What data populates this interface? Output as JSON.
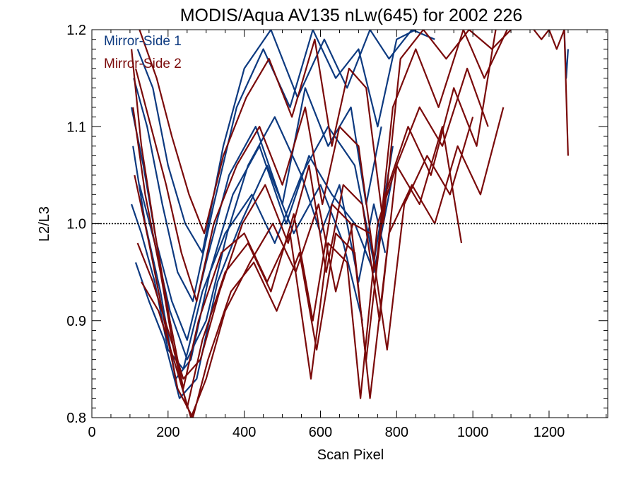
{
  "chart_data": {
    "type": "line",
    "title": "MODIS/Aqua AV135 nLw(645) for 2002 226",
    "xlabel": "Scan Pixel",
    "ylabel": "L2/L3",
    "xlim": [
      0,
      1354
    ],
    "ylim": [
      0.8,
      1.2
    ],
    "x_ticks": [
      "0",
      "200",
      "400",
      "600",
      "800",
      "1000",
      "1200"
    ],
    "y_ticks": [
      "0.8",
      "0.9",
      "1.0",
      "1.1",
      "1.2"
    ],
    "reference_line": 1.0,
    "legend": {
      "position": "top-left",
      "entries": [
        {
          "name": "Mirror-Side 1",
          "color": "#0d3a80"
        },
        {
          "name": "Mirror-Side 2",
          "color": "#7a0a0a"
        }
      ]
    },
    "series": [
      {
        "group": "Mirror-Side 1",
        "color": "#0d3a80",
        "x": [
          104,
          130,
          165,
          200,
          240,
          290,
          350,
          420,
          480,
          550,
          600,
          650,
          700,
          740,
          770
        ],
        "y": [
          1.02,
          0.99,
          0.94,
          0.87,
          0.85,
          0.93,
          0.99,
          1.03,
          0.98,
          1.05,
          0.99,
          1.04,
          0.94,
          1.02,
          0.97
        ]
      },
      {
        "group": "Mirror-Side 1",
        "color": "#0d3a80",
        "x": [
          104,
          135,
          170,
          210,
          250,
          300,
          360,
          430,
          500,
          560,
          620,
          680,
          720,
          760
        ],
        "y": [
          1.12,
          1.06,
          0.98,
          0.92,
          0.88,
          0.96,
          1.05,
          1.1,
          1.02,
          1.14,
          1.08,
          1.12,
          1.02,
          1.1
        ]
      },
      {
        "group": "Mirror-Side 1",
        "color": "#0d3a80",
        "x": [
          108,
          140,
          180,
          220,
          260,
          310,
          370,
          440,
          510,
          570,
          630,
          690,
          740,
          790
        ],
        "y": [
          1.08,
          1.0,
          0.93,
          0.84,
          0.86,
          0.95,
          1.03,
          1.08,
          1.0,
          1.07,
          1.03,
          1.0,
          0.95,
          1.05
        ]
      },
      {
        "group": "Mirror-Side 1",
        "color": "#0d3a80",
        "x": [
          110,
          145,
          185,
          225,
          265,
          320,
          380,
          450,
          520,
          580,
          640,
          700,
          750,
          800,
          850
        ],
        "y": [
          1.15,
          1.1,
          1.02,
          0.95,
          0.92,
          1.02,
          1.12,
          1.18,
          1.12,
          1.2,
          1.15,
          1.18,
          1.1,
          1.19,
          1.2
        ]
      },
      {
        "group": "Mirror-Side 1",
        "color": "#0d3a80",
        "x": [
          115,
          150,
          190,
          230,
          275,
          330,
          390,
          460,
          530,
          600,
          660,
          710
        ],
        "y": [
          0.96,
          0.92,
          0.88,
          0.82,
          0.84,
          0.94,
          1.0,
          1.06,
          0.99,
          1.04,
          0.98,
          0.9
        ]
      },
      {
        "group": "Mirror-Side 1",
        "color": "#0d3a80",
        "x": [
          120,
          160,
          200,
          245,
          290,
          345,
          400,
          470,
          540,
          610,
          670,
          730,
          780,
          840,
          900
        ],
        "y": [
          1.18,
          1.14,
          1.06,
          1.0,
          0.97,
          1.08,
          1.16,
          1.2,
          1.13,
          1.19,
          1.14,
          1.2,
          1.17,
          1.2,
          1.19
        ]
      },
      {
        "group": "Mirror-Side 1",
        "color": "#0d3a80",
        "x": [
          125,
          165,
          205,
          250,
          300,
          355,
          410,
          480,
          550,
          620,
          690,
          740,
          790
        ],
        "y": [
          1.04,
          0.98,
          0.91,
          0.86,
          0.9,
          0.99,
          1.06,
          1.11,
          1.05,
          1.1,
          1.06,
          0.96,
          1.08
        ]
      },
      {
        "group": "Mirror-Side 1",
        "color": "#0d3a80",
        "x": [
          1240,
          1245,
          1250
        ],
        "y": [
          1.2,
          1.15,
          1.18
        ]
      },
      {
        "group": "Mirror-Side 2",
        "color": "#7a0a0a",
        "x": [
          104,
          130,
          170,
          205,
          240,
          280,
          340,
          400,
          460,
          520,
          575,
          620,
          670,
          705,
          750,
          800,
          860,
          920,
          970
        ],
        "y": [
          1.18,
          1.08,
          0.98,
          0.9,
          0.83,
          0.9,
          0.97,
          0.99,
          0.94,
          0.99,
          0.84,
          0.98,
          0.96,
          0.82,
          1.0,
          1.06,
          1.02,
          1.1,
          0.98
        ]
      },
      {
        "group": "Mirror-Side 2",
        "color": "#7a0a0a",
        "x": [
          108,
          140,
          180,
          215,
          250,
          290,
          350,
          410,
          470,
          530,
          580,
          630,
          680,
          720,
          770,
          830,
          890,
          950,
          1010,
          1060
        ],
        "y": [
          1.12,
          1.03,
          0.95,
          0.87,
          0.81,
          0.88,
          0.95,
          0.98,
          0.93,
          1.01,
          0.9,
          1.02,
          1.0,
          0.86,
          1.03,
          1.1,
          1.05,
          1.14,
          1.08,
          1.2
        ]
      },
      {
        "group": "Mirror-Side 2",
        "color": "#7a0a0a",
        "x": [
          112,
          150,
          190,
          225,
          265,
          305,
          365,
          425,
          485,
          545,
          590,
          640,
          690,
          730,
          780,
          840,
          900,
          960,
          1020,
          1080
        ],
        "y": [
          1.05,
          0.98,
          0.9,
          0.83,
          0.8,
          0.86,
          0.93,
          0.96,
          0.91,
          0.97,
          0.87,
          0.99,
          0.97,
          0.82,
          0.99,
          1.04,
          1.0,
          1.08,
          1.03,
          1.12
        ]
      },
      {
        "group": "Mirror-Side 2",
        "color": "#7a0a0a",
        "x": [
          115,
          155,
          195,
          235,
          275,
          320,
          380,
          440,
          500,
          560,
          605,
          650,
          700,
          745,
          790,
          850,
          910,
          975,
          1030,
          1090
        ],
        "y": [
          1.16,
          1.1,
          1.04,
          0.97,
          0.92,
          1.0,
          1.06,
          1.1,
          1.04,
          1.12,
          1.02,
          1.1,
          1.08,
          0.95,
          1.12,
          1.18,
          1.12,
          1.2,
          1.15,
          1.2
        ]
      },
      {
        "group": "Mirror-Side 2",
        "color": "#7a0a0a",
        "x": [
          120,
          160,
          200,
          240,
          285,
          335,
          395,
          455,
          515,
          570,
          615,
          660,
          710,
          755,
          800,
          860,
          920,
          985,
          1040
        ],
        "y": [
          0.98,
          0.94,
          0.89,
          0.84,
          0.86,
          0.93,
          1.0,
          1.04,
          0.98,
          1.06,
          0.95,
          1.04,
          1.02,
          0.9,
          1.06,
          1.12,
          1.08,
          1.16,
          1.1
        ]
      },
      {
        "group": "Mirror-Side 2",
        "color": "#7a0a0a",
        "x": [
          125,
          170,
          210,
          255,
          295,
          345,
          405,
          465,
          525,
          585,
          630,
          675,
          720,
          765,
          810,
          870,
          930,
          990,
          1050,
          1100
        ],
        "y": [
          1.2,
          1.15,
          1.09,
          1.03,
          0.99,
          1.07,
          1.13,
          1.17,
          1.11,
          1.19,
          1.08,
          1.16,
          1.14,
          1.0,
          1.17,
          1.2,
          1.17,
          1.2,
          1.18,
          1.2
        ]
      },
      {
        "group": "Mirror-Side 2",
        "color": "#7a0a0a",
        "x": [
          130,
          175,
          215,
          260,
          300,
          350,
          415,
          475,
          535,
          595,
          640,
          685,
          730,
          775,
          820,
          880,
          940,
          1000
        ],
        "y": [
          0.94,
          0.91,
          0.86,
          0.8,
          0.84,
          0.91,
          0.96,
          1.0,
          0.95,
          1.02,
          0.93,
          1.0,
          0.99,
          0.87,
          1.02,
          1.07,
          1.03,
          1.11
        ]
      },
      {
        "group": "Mirror-Side 2",
        "color": "#7a0a0a",
        "x": [
          1160,
          1180,
          1200,
          1220,
          1240,
          1250
        ],
        "y": [
          1.2,
          1.19,
          1.2,
          1.18,
          1.2,
          1.07
        ]
      }
    ]
  }
}
